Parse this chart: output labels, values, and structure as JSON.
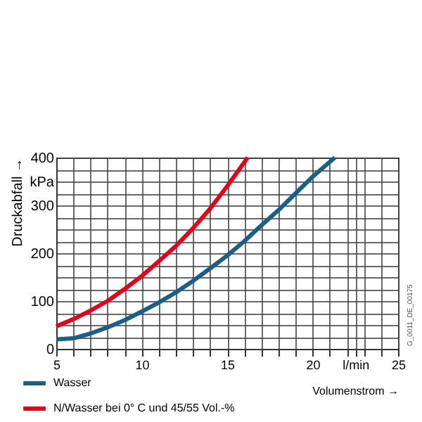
{
  "chart_data": {
    "type": "line",
    "xlabel": "Volumenstrom →",
    "ylabel": "Druckabfall →",
    "xlim": [
      5,
      25
    ],
    "ylim": [
      0,
      400
    ],
    "xticks": [
      5,
      {
        "value": 6,
        "label": null
      },
      {
        "value": 7,
        "label": null
      },
      {
        "value": 8,
        "label": null
      },
      {
        "value": 9,
        "label": null
      },
      10,
      {
        "value": 11,
        "label": null
      },
      {
        "value": 12,
        "label": null
      },
      {
        "value": 13,
        "label": null
      },
      {
        "value": 14,
        "label": null
      },
      15,
      {
        "value": 16,
        "label": null
      },
      {
        "value": 17,
        "label": null
      },
      {
        "value": 18,
        "label": null
      },
      {
        "value": 19,
        "label": null
      },
      20,
      {
        "value": 21,
        "label": null
      },
      {
        "value": 22,
        "label": null
      },
      {
        "value": 22.5,
        "label": "l/min"
      },
      {
        "value": 23,
        "label": null
      },
      {
        "value": 24,
        "label": null
      },
      25
    ],
    "yticks": [
      0,
      {
        "value": 25,
        "label": null
      },
      {
        "value": 50,
        "label": null
      },
      {
        "value": 75,
        "label": null
      },
      100,
      {
        "value": 125,
        "label": null
      },
      {
        "value": 150,
        "label": null
      },
      {
        "value": 175,
        "label": null
      },
      200,
      {
        "value": 225,
        "label": null
      },
      {
        "value": 250,
        "label": null
      },
      {
        "value": 275,
        "label": null
      },
      300,
      {
        "value": 325,
        "label": null
      },
      {
        "value": 350,
        "label": "kPa"
      },
      {
        "value": 375,
        "label": null
      },
      400
    ],
    "grid": true,
    "legend": "bottom",
    "marker": "none",
    "line_style": "solid",
    "annotations": [
      "G_0011_DE_00175"
    ],
    "series": [
      {
        "name": "Wasser",
        "color": "#1b5e86",
        "x": [
          5,
          6,
          7,
          8,
          9,
          10,
          11,
          12,
          13,
          14,
          15,
          16,
          17,
          18,
          19,
          20,
          21.3
        ],
        "values": [
          20,
          22,
          32,
          45,
          60,
          78,
          97,
          118,
          142,
          168,
          195,
          225,
          258,
          290,
          325,
          360,
          400
        ]
      },
      {
        "name": "N/Wasser bei 0° C und 45/55 Vol.-%",
        "color": "#e3001b",
        "x": [
          5,
          6,
          7,
          8,
          9,
          10,
          11,
          12,
          13,
          14,
          15,
          16.2
        ],
        "values": [
          47,
          62,
          80,
          100,
          125,
          152,
          183,
          215,
          252,
          293,
          340,
          400
        ]
      }
    ]
  }
}
